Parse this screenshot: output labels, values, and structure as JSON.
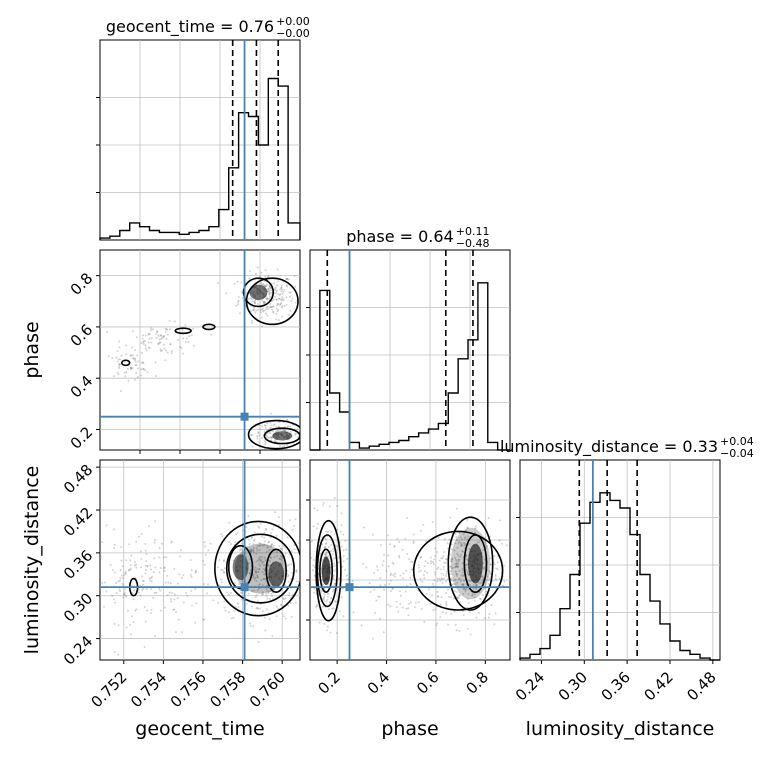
{
  "chart_data": {
    "type": "corner",
    "parameters": [
      "geocent_time",
      "phase",
      "luminosity_distance"
    ],
    "injection": {
      "geocent_time": 0.7581,
      "phase": 0.25,
      "luminosity_distance": 0.312
    },
    "colors": {
      "truth": "#4682b4",
      "hist": "#000000",
      "points": "#808080",
      "grid": "#c0c0c0"
    },
    "diag": [
      {
        "param": "geocent_time",
        "title_main": "geocent_time = 0.76",
        "title_plus": "+0.00",
        "title_minus": "−0.00",
        "xlim": [
          0.7508,
          0.7609
        ],
        "ymax": 1.0,
        "quantiles": [
          0.7575,
          0.7587,
          0.7598
        ],
        "edges": [
          0.7508,
          0.7513,
          0.7518,
          0.7523,
          0.7528,
          0.7533,
          0.7538,
          0.7543,
          0.7548,
          0.7553,
          0.7558,
          0.7563,
          0.7568,
          0.7573,
          0.7578,
          0.7583,
          0.7588,
          0.7593,
          0.7598,
          0.7603,
          0.7609
        ],
        "counts": [
          0.01,
          0.02,
          0.05,
          0.09,
          0.07,
          0.05,
          0.04,
          0.04,
          0.03,
          0.04,
          0.05,
          0.07,
          0.16,
          0.38,
          0.67,
          0.65,
          0.5,
          0.85,
          0.81,
          0.09
        ]
      },
      {
        "param": "phase",
        "title_main": "phase = 0.64",
        "title_plus": "+0.11",
        "title_minus": "−0.48",
        "xlim": [
          0.09,
          0.9
        ],
        "ymax": 1.0,
        "quantiles": [
          0.16,
          0.64,
          0.75
        ],
        "edges": [
          0.09,
          0.13,
          0.17,
          0.21,
          0.25,
          0.29,
          0.33,
          0.37,
          0.41,
          0.45,
          0.49,
          0.53,
          0.57,
          0.61,
          0.65,
          0.69,
          0.73,
          0.77,
          0.81,
          0.85,
          0.9
        ],
        "counts": [
          0.0,
          0.84,
          0.3,
          0.2,
          0.04,
          0.01,
          0.02,
          0.03,
          0.04,
          0.05,
          0.07,
          0.09,
          0.11,
          0.14,
          0.3,
          0.48,
          0.58,
          0.88,
          0.04,
          0.0
        ]
      },
      {
        "param": "luminosity_distance",
        "title_main": "luminosity_distance = 0.33",
        "title_plus": "+0.04",
        "title_minus": "−0.04",
        "xlim": [
          0.21,
          0.49
        ],
        "ymax": 1.0,
        "quantiles": [
          0.293,
          0.332,
          0.374
        ],
        "edges": [
          0.21,
          0.224,
          0.238,
          0.252,
          0.266,
          0.28,
          0.294,
          0.308,
          0.322,
          0.336,
          0.35,
          0.364,
          0.378,
          0.392,
          0.406,
          0.42,
          0.434,
          0.448,
          0.462,
          0.476,
          0.49
        ],
        "counts": [
          0.01,
          0.03,
          0.06,
          0.13,
          0.27,
          0.45,
          0.72,
          0.83,
          0.88,
          0.84,
          0.8,
          0.66,
          0.45,
          0.31,
          0.19,
          0.1,
          0.05,
          0.03,
          0.01,
          0.0
        ]
      }
    ],
    "pairs": [
      {
        "x": "geocent_time",
        "y": "phase",
        "xlim": [
          0.7508,
          0.7609
        ],
        "ylim": [
          0.12,
          0.9
        ],
        "clusters": [
          {
            "cx": 0.7592,
            "cy": 0.72,
            "sx": 0.0007,
            "sy": 0.045,
            "n": 260
          },
          {
            "cx": 0.7597,
            "cy": 0.18,
            "sx": 0.0006,
            "sy": 0.025,
            "n": 160
          },
          {
            "cx": 0.754,
            "cy": 0.55,
            "sx": 0.001,
            "sy": 0.03,
            "n": 90
          },
          {
            "cx": 0.7522,
            "cy": 0.45,
            "sx": 0.0006,
            "sy": 0.025,
            "n": 60
          }
        ],
        "contours": [
          {
            "cx": 0.7588,
            "cy": 0.735,
            "rx": 0.00075,
            "ry": 0.055
          },
          {
            "cx": 0.7595,
            "cy": 0.7,
            "rx": 0.0013,
            "ry": 0.09
          },
          {
            "cx": 0.76,
            "cy": 0.175,
            "rx": 0.0009,
            "ry": 0.03
          },
          {
            "cx": 0.7597,
            "cy": 0.18,
            "rx": 0.0014,
            "ry": 0.055
          },
          {
            "cx": 0.7521,
            "cy": 0.46,
            "rx": 0.0002,
            "ry": 0.01
          },
          {
            "cx": 0.755,
            "cy": 0.585,
            "rx": 0.0004,
            "ry": 0.01
          },
          {
            "cx": 0.7563,
            "cy": 0.6,
            "rx": 0.0003,
            "ry": 0.01
          }
        ],
        "fills": [
          {
            "cx": 0.7588,
            "cy": 0.735,
            "rx": 0.00045,
            "ry": 0.03,
            "op": 0.55
          },
          {
            "cx": 0.76,
            "cy": 0.175,
            "rx": 0.0005,
            "ry": 0.018,
            "op": 0.55
          }
        ],
        "xticks": [],
        "yticks": [
          0.2,
          0.4,
          0.6,
          0.8
        ]
      },
      {
        "x": "geocent_time",
        "y": "luminosity_distance",
        "xlim": [
          0.7508,
          0.7609
        ],
        "ylim": [
          0.21,
          0.49
        ],
        "clusters": [
          {
            "cx": 0.759,
            "cy": 0.335,
            "sx": 0.001,
            "sy": 0.035,
            "n": 420
          },
          {
            "cx": 0.754,
            "cy": 0.32,
            "sx": 0.0018,
            "sy": 0.035,
            "n": 150
          },
          {
            "cx": 0.7522,
            "cy": 0.315,
            "sx": 0.0006,
            "sy": 0.025,
            "n": 60
          }
        ],
        "contours": [
          {
            "cx": 0.7579,
            "cy": 0.34,
            "rx": 0.0006,
            "ry": 0.03
          },
          {
            "cx": 0.7597,
            "cy": 0.335,
            "rx": 0.0005,
            "ry": 0.03
          },
          {
            "cx": 0.7589,
            "cy": 0.338,
            "rx": 0.0017,
            "ry": 0.048
          },
          {
            "cx": 0.7588,
            "cy": 0.338,
            "rx": 0.0022,
            "ry": 0.066
          },
          {
            "cx": 0.7525,
            "cy": 0.312,
            "rx": 0.0002,
            "ry": 0.012
          }
        ],
        "fills": [
          {
            "cx": 0.7579,
            "cy": 0.34,
            "rx": 0.0004,
            "ry": 0.018,
            "op": 0.5
          },
          {
            "cx": 0.7597,
            "cy": 0.33,
            "rx": 0.0004,
            "ry": 0.018,
            "op": 0.5
          },
          {
            "cx": 0.7589,
            "cy": 0.338,
            "rx": 0.0013,
            "ry": 0.035,
            "op": 0.25
          }
        ],
        "xticks": [
          0.752,
          0.754,
          0.756,
          0.758,
          0.76
        ],
        "yticks": [
          0.24,
          0.3,
          0.36,
          0.42,
          0.48
        ]
      },
      {
        "x": "phase",
        "y": "luminosity_distance",
        "xlim": [
          0.09,
          0.9
        ],
        "ylim": [
          0.21,
          0.49
        ],
        "clusters": [
          {
            "cx": 0.16,
            "cy": 0.335,
            "sx": 0.035,
            "sy": 0.035,
            "n": 260
          },
          {
            "cx": 0.72,
            "cy": 0.335,
            "sx": 0.07,
            "sy": 0.035,
            "n": 420
          },
          {
            "cx": 0.45,
            "cy": 0.33,
            "sx": 0.1,
            "sy": 0.03,
            "n": 120
          }
        ],
        "contours": [
          {
            "cx": 0.155,
            "cy": 0.335,
            "rx": 0.025,
            "ry": 0.03
          },
          {
            "cx": 0.16,
            "cy": 0.335,
            "rx": 0.04,
            "ry": 0.05
          },
          {
            "cx": 0.165,
            "cy": 0.335,
            "rx": 0.05,
            "ry": 0.07
          },
          {
            "cx": 0.76,
            "cy": 0.345,
            "rx": 0.045,
            "ry": 0.04
          },
          {
            "cx": 0.74,
            "cy": 0.345,
            "rx": 0.09,
            "ry": 0.065
          },
          {
            "cx": 0.69,
            "cy": 0.335,
            "rx": 0.18,
            "ry": 0.055
          }
        ],
        "fills": [
          {
            "cx": 0.155,
            "cy": 0.335,
            "rx": 0.018,
            "ry": 0.02,
            "op": 0.7
          },
          {
            "cx": 0.76,
            "cy": 0.345,
            "rx": 0.03,
            "ry": 0.028,
            "op": 0.6
          },
          {
            "cx": 0.74,
            "cy": 0.345,
            "rx": 0.08,
            "ry": 0.05,
            "op": 0.2
          }
        ],
        "xticks": [
          0.2,
          0.4,
          0.6,
          0.8
        ],
        "yticks": []
      }
    ],
    "diag_xticks": [
      [],
      [],
      [
        0.24,
        0.3,
        0.36,
        0.42,
        0.48
      ]
    ],
    "tick_labels": {
      "geocent_time": {
        "0.752": "0.752",
        "0.754": "0.754",
        "0.756": "0.756",
        "0.758": "0.758",
        "0.760": "0.760"
      },
      "phase": {
        "0.2": "0.2",
        "0.4": "0.4",
        "0.6": "0.6",
        "0.8": "0.8"
      },
      "luminosity_distance": {
        "0.24": "0.24",
        "0.30": "0.30",
        "0.36": "0.36",
        "0.42": "0.42",
        "0.48": "0.48"
      }
    },
    "axis_labels": {
      "x": [
        "geocent_time",
        "phase",
        "luminosity_distance"
      ],
      "y": [
        "phase",
        "luminosity_distance"
      ]
    },
    "grid": true
  }
}
